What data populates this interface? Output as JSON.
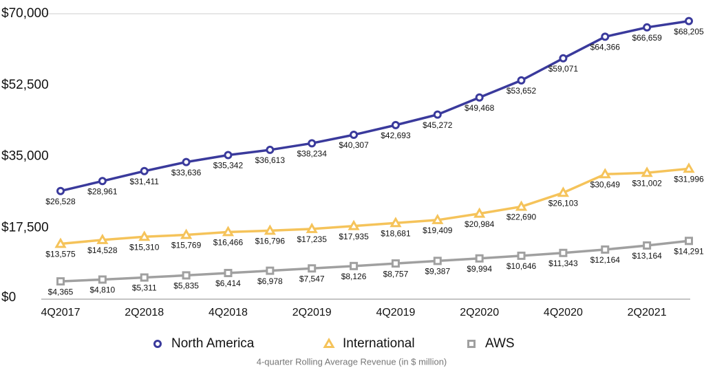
{
  "chart_data": {
    "type": "line",
    "x_label": "4-quarter Rolling Average Revenue (in $ million)",
    "categories": [
      "4Q2017",
      null,
      "2Q2018",
      null,
      "4Q2018",
      null,
      "2Q2019",
      null,
      "4Q2019",
      null,
      "2Q2020",
      null,
      "4Q2020",
      null,
      "2Q2021",
      null
    ],
    "series": [
      {
        "name": "North America",
        "color": "#3a3a9c",
        "marker": "circle",
        "values": [
          26528,
          28961,
          31411,
          33636,
          35342,
          36613,
          38234,
          40307,
          42693,
          45272,
          49468,
          53652,
          59071,
          64366,
          66659,
          68205
        ],
        "value_labels": [
          "$26,528",
          "$28,961",
          "$31,411",
          "$33,636",
          "$35,342",
          "$36,613",
          "$38,234",
          "$40,307",
          "$42,693",
          "$45,272",
          "$49,468",
          "$53,652",
          "$59,071",
          "$64,366",
          "$66,659",
          "$68,205"
        ]
      },
      {
        "name": "International",
        "color": "#f5c35a",
        "marker": "triangle",
        "values": [
          13575,
          14528,
          15310,
          15769,
          16466,
          16796,
          17235,
          17935,
          18681,
          19409,
          20984,
          22690,
          26103,
          30649,
          31002,
          31996
        ],
        "value_labels": [
          "$13,575",
          "$14,528",
          "$15,310",
          "$15,769",
          "$16,466",
          "$16,796",
          "$17,235",
          "$17,935",
          "$18,681",
          "$19,409",
          "$20,984",
          "$22,690",
          "$26,103",
          "$30,649",
          "$31,002",
          "$31,996"
        ]
      },
      {
        "name": "AWS",
        "color": "#a0a0a0",
        "marker": "square",
        "values": [
          4365,
          4810,
          5311,
          5835,
          6414,
          6978,
          7547,
          8126,
          8757,
          9387,
          9994,
          10646,
          11343,
          12164,
          13164,
          14291
        ],
        "value_labels": [
          "$4,365",
          "$4,810",
          "$5,311",
          "$5,835",
          "$6,414",
          "$6,978",
          "$7,547",
          "$8,126",
          "$8,757",
          "$9,387",
          "$9,994",
          "$10,646",
          "$11,343",
          "$12,164",
          "$13,164",
          "$14,291"
        ]
      }
    ],
    "ylim": [
      0,
      70000
    ],
    "yticks": [
      {
        "value": 0,
        "label": "$0"
      },
      {
        "value": 17500,
        "label": "$17,500"
      },
      {
        "value": 35000,
        "label": "$35,000"
      },
      {
        "value": 52500,
        "label": "$52,500"
      },
      {
        "value": 70000,
        "label": "$70,000"
      }
    ],
    "legend": "bottom"
  }
}
